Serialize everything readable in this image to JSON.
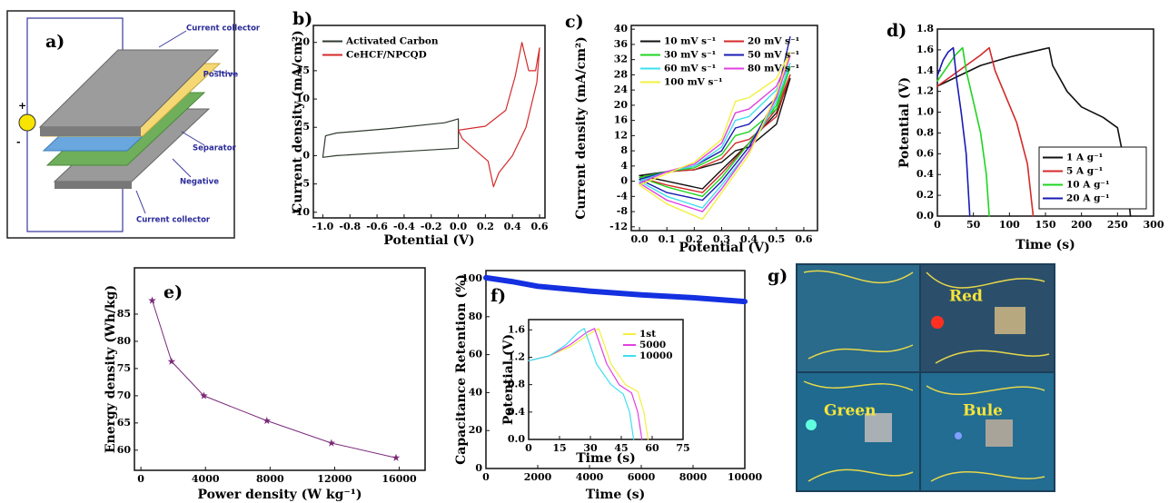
{
  "diagram": {
    "label": "a)",
    "plus": "+",
    "minus": "-",
    "layers": [
      "Current collector",
      "Positive",
      "Separator",
      "Negative",
      "Current collector"
    ]
  },
  "chart_data": [
    {
      "type": "line",
      "label": "b)",
      "xlabel": "Potential (V)",
      "ylabel": "Current density (mA/cm²)",
      "xlim": [
        -1.07,
        0.64
      ],
      "ylim": [
        -11,
        23
      ],
      "xticks": [
        {
          "value": -1.0,
          "label": "-1.0"
        },
        -0.8,
        -0.6,
        -0.4,
        -0.2,
        {
          "value": 0.0,
          "label": "0.0"
        },
        0.2,
        0.4,
        0.6
      ],
      "yticks": [
        -10,
        -5,
        0,
        5,
        10,
        15,
        20
      ],
      "legend": "upper left",
      "series": [
        {
          "name": "Activated Carbon",
          "color": "#2f3a2f",
          "x": [
            -1.0,
            -0.98,
            -0.9,
            -0.5,
            -0.1,
            0.0,
            0.0,
            -0.5,
            -0.9,
            -1.0
          ],
          "values": [
            -0.3,
            3.5,
            4.0,
            4.8,
            5.8,
            6.5,
            1.3,
            0.6,
            0.0,
            -0.3
          ]
        },
        {
          "name": "CeHCF/NPCQD",
          "color": "#d42a2a",
          "x": [
            0.0,
            0.2,
            0.35,
            0.42,
            0.47,
            0.52,
            0.57,
            0.6,
            0.58,
            0.5,
            0.4,
            0.3,
            0.26,
            0.22,
            0.1,
            0.03,
            0.0
          ],
          "values": [
            4.5,
            5.2,
            8,
            14,
            20,
            15,
            15,
            19,
            13,
            5,
            0,
            -3,
            -5.5,
            -1,
            1.5,
            3,
            4.5
          ]
        }
      ]
    },
    {
      "type": "line",
      "label": "c)",
      "xlabel": "Potential (V)",
      "ylabel": "Current density (mA/cm²)",
      "xlim": [
        -0.03,
        0.65
      ],
      "ylim": [
        -13,
        41
      ],
      "xticks": [
        {
          "value": 0.0,
          "label": "0.0"
        },
        0.1,
        0.2,
        0.3,
        0.4,
        0.5,
        0.6
      ],
      "yticks": [
        -12,
        -8,
        -4,
        0,
        4,
        8,
        12,
        16,
        20,
        24,
        28,
        32,
        36,
        40
      ],
      "legend": "upper left",
      "x": [
        0,
        0.1,
        0.2,
        0.3,
        0.35,
        0.4,
        0.5,
        0.55,
        0.5,
        0.4,
        0.3,
        0.23,
        0.1,
        0
      ],
      "series": [
        {
          "name": "10 mV s⁻¹",
          "color": "#111111",
          "values": [
            1.5,
            2.5,
            3,
            5,
            8,
            9,
            15,
            27,
            18,
            10,
            3,
            -2,
            0,
            1.5
          ]
        },
        {
          "name": "20 mV s⁻¹",
          "color": "#d42a2a",
          "values": [
            1,
            2.5,
            3,
            6,
            10,
            11,
            17,
            28,
            19,
            10,
            2,
            -3,
            -1,
            1
          ]
        },
        {
          "name": "30 mV s⁻¹",
          "color": "#1fd41f",
          "values": [
            1,
            2.5,
            3.5,
            7,
            12,
            13,
            19,
            30,
            20,
            10,
            1,
            -4,
            -1.5,
            1
          ]
        },
        {
          "name": "50 mV s⁻¹",
          "color": "#1a1ab4",
          "values": [
            0.5,
            2.5,
            4,
            8,
            14,
            15,
            22,
            38,
            22,
            9,
            0,
            -5,
            -3,
            0.5
          ]
        },
        {
          "name": "60 mV s⁻¹",
          "color": "#3ee0ee",
          "values": [
            0,
            2.5,
            4,
            9,
            16,
            17,
            24,
            31,
            21,
            8,
            -1,
            -7,
            -4,
            0
          ]
        },
        {
          "name": "80 mV s⁻¹",
          "color": "#e040e0",
          "values": [
            -0.5,
            2.5,
            4.5,
            10,
            18,
            19,
            25,
            33,
            22,
            8,
            -2,
            -8,
            -5,
            -0.5
          ]
        },
        {
          "name": "100 mV s⁻¹",
          "color": "#f2f040",
          "values": [
            -1,
            2,
            5,
            11,
            21,
            22,
            27,
            34,
            23,
            7,
            -3,
            -10,
            -6,
            -1
          ]
        }
      ]
    },
    {
      "type": "line",
      "label": "d)",
      "xlabel": "Time (s)",
      "ylabel": "Potential (V)",
      "xlim": [
        0,
        300
      ],
      "ylim": [
        0,
        1.8
      ],
      "xticks": [
        0,
        50,
        100,
        150,
        200,
        250,
        300
      ],
      "yticks": [
        {
          "value": 0.0,
          "label": "0.0"
        },
        0.2,
        0.4,
        0.6,
        0.8,
        {
          "value": 1.0,
          "label": "1.0"
        },
        1.2,
        1.4,
        1.6,
        1.8
      ],
      "legend": "lower right",
      "series": [
        {
          "name": "1 A g⁻¹",
          "color": "#111111",
          "x": [
            0,
            30,
            60,
            100,
            130,
            155,
            160,
            180,
            200,
            230,
            250,
            260,
            268
          ],
          "values": [
            1.25,
            1.35,
            1.45,
            1.53,
            1.58,
            1.62,
            1.45,
            1.2,
            1.05,
            0.95,
            0.85,
            0.5,
            0
          ]
        },
        {
          "name": "5 A g⁻¹",
          "color": "#d42a2a",
          "x": [
            0,
            20,
            40,
            60,
            72,
            80,
            95,
            110,
            125,
            133
          ],
          "values": [
            1.25,
            1.35,
            1.45,
            1.55,
            1.62,
            1.4,
            1.15,
            0.9,
            0.5,
            0
          ]
        },
        {
          "name": "10 A g⁻¹",
          "color": "#1fd41f",
          "x": [
            0,
            15,
            25,
            35,
            40,
            50,
            60,
            68,
            72
          ],
          "values": [
            1.3,
            1.45,
            1.55,
            1.62,
            1.4,
            1.1,
            0.8,
            0.4,
            0
          ]
        },
        {
          "name": "20 A g⁻¹",
          "color": "#1a1ab4",
          "x": [
            0,
            8,
            15,
            22,
            27,
            33,
            40,
            45
          ],
          "values": [
            1.35,
            1.5,
            1.58,
            1.62,
            1.3,
            1.0,
            0.6,
            0
          ]
        }
      ]
    },
    {
      "type": "line",
      "label": "e)",
      "xlabel": "Power density (W kg⁻¹)",
      "ylabel": "Energy density (Wh/kg)",
      "xlim": [
        -400,
        17600
      ],
      "ylim": [
        56.3,
        93.5
      ],
      "markers": "star",
      "xticks": [
        0,
        4000,
        8000,
        12000,
        16000
      ],
      "yticks": [
        60,
        65,
        70,
        75,
        80,
        85
      ],
      "series": [
        {
          "color": "#7a2a7a",
          "x": [
            700,
            1900,
            3900,
            7800,
            11800,
            15800
          ],
          "values": [
            87.5,
            76.3,
            70,
            65.4,
            61.3,
            58.6
          ]
        }
      ]
    },
    {
      "type": "line",
      "label": "f)",
      "xlabel": "Time (s)",
      "ylabel": "Capacitance Retention (%)",
      "xlim": [
        0,
        10000
      ],
      "ylim": [
        0,
        104.3
      ],
      "xticks": [
        0,
        2000,
        4000,
        6000,
        8000,
        10000
      ],
      "yticks": [
        0,
        20,
        40,
        60,
        80,
        100
      ],
      "series": [
        {
          "color": "#1430e0",
          "x": [
            0,
            500,
            1000,
            2000,
            4000,
            6000,
            8000,
            9000,
            10000
          ],
          "values": [
            100.5,
            99.5,
            98.5,
            96,
            93.5,
            91.5,
            90,
            89,
            88
          ]
        }
      ]
    },
    {
      "type": "line",
      "xlabel": "Time (s)",
      "ylabel": "Potential (V)",
      "xlim": [
        0,
        75
      ],
      "ylim": [
        0,
        1.75
      ],
      "xticks": [
        0,
        15,
        30,
        45,
        60,
        75
      ],
      "yticks": [
        {
          "value": 0.0,
          "label": "0.0"
        },
        0.4,
        0.8,
        1.2,
        1.6
      ],
      "legend": "upper right",
      "series": [
        {
          "name": "1st",
          "color": "#f2f040",
          "x": [
            0,
            10,
            20,
            30,
            34,
            40,
            47,
            53,
            56,
            58
          ],
          "values": [
            1.15,
            1.22,
            1.35,
            1.55,
            1.62,
            1.1,
            0.8,
            0.7,
            0.4,
            0
          ]
        },
        {
          "name": "5000",
          "color": "#e040e0",
          "x": [
            0,
            10,
            20,
            28,
            32,
            38,
            44,
            50,
            53,
            55
          ],
          "values": [
            1.15,
            1.22,
            1.38,
            1.56,
            1.62,
            1.1,
            0.8,
            0.68,
            0.4,
            0
          ]
        },
        {
          "name": "10000",
          "color": "#3ee0ee",
          "x": [
            0,
            10,
            18,
            24,
            27,
            33,
            40,
            46,
            49,
            51
          ],
          "values": [
            1.15,
            1.22,
            1.38,
            1.56,
            1.62,
            1.1,
            0.8,
            0.66,
            0.4,
            0
          ]
        }
      ]
    }
  ],
  "photos": {
    "label": "g)",
    "captions": [
      "Red",
      "Green",
      "Bule"
    ]
  }
}
